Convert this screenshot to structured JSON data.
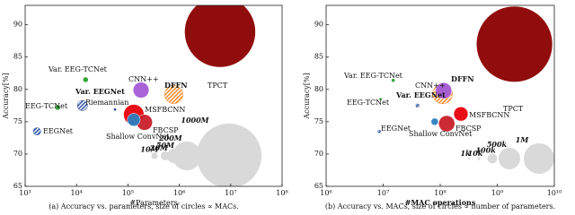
{
  "chart_data": [
    {
      "type": "scatter",
      "x_label": "#Parameters",
      "y_label": "Accuracy[%]",
      "caption": "(a) Accuracy vs. parameters, size of circles ∝ MACs.",
      "xscale": "log",
      "xlim": [
        1000,
        100000000
      ],
      "xticks": [
        {
          "value": 1000,
          "label": "10³"
        },
        {
          "value": 10000,
          "label": "10⁴"
        },
        {
          "value": 100000,
          "label": "10⁵"
        },
        {
          "value": 1000000,
          "label": "10⁶"
        },
        {
          "value": 10000000,
          "label": "10⁷"
        },
        {
          "value": 100000000,
          "label": "10⁸"
        }
      ],
      "ylim": [
        65,
        93
      ],
      "yticks": [
        65,
        70,
        75,
        80,
        85,
        90
      ],
      "points": {
        "labels": [
          "TPCT",
          "DFFN",
          "CNN++",
          "MSFBCNN",
          "FBCSP",
          "Shallow ConvNet",
          "Riemannian",
          "Var. EEGNet",
          "Var. EEG-TCNet",
          "EEG-TCNet",
          "EEGNet"
        ],
        "x": [
          6200000,
          780000,
          180000,
          130000,
          210000,
          130000,
          56000,
          13000,
          15000,
          4300,
          1700
        ],
        "y": [
          88.9,
          79.2,
          79.9,
          76.1,
          74.9,
          75.3,
          76.9,
          77.5,
          81.5,
          77.2,
          73.5
        ],
        "size": [
          1200000000,
          80000000,
          60000000,
          100000000,
          60000000,
          40000000,
          1000000,
          25000000,
          7000000,
          7000000,
          13000000
        ],
        "colors": [
          "#8b0000",
          "#f0892a",
          "#a45ad6",
          "#e8000b",
          "#c9202a",
          "#2a7fbf",
          "#1f3f8f",
          "#3050a0",
          "#2ca02c",
          "#2ca02c",
          "#1f4e9c"
        ],
        "hatched": [
          false,
          true,
          false,
          false,
          false,
          false,
          false,
          true,
          false,
          false,
          true
        ],
        "bold": [
          false,
          true,
          false,
          false,
          false,
          false,
          false,
          true,
          false,
          false,
          false
        ]
      },
      "size_legend": {
        "values": [
          10000000,
          20000000,
          50000000,
          200000000,
          1000000000
        ],
        "labels": [
          "10M",
          "20M",
          "50M",
          "200M",
          "1000M"
        ],
        "color": "#d9d9d9"
      }
    },
    {
      "type": "scatter",
      "x_label": "#MAC operations",
      "y_label": "Accuracy[%]",
      "caption": "(b) Accuracy vs. MACs, size of circles ∝ number of parameters.",
      "xscale": "log",
      "xlim": [
        1000000,
        10000000000
      ],
      "xticks": [
        {
          "value": 1000000,
          "label": "10⁶"
        },
        {
          "value": 10000000,
          "label": "10⁷"
        },
        {
          "value": 100000000,
          "label": "10⁸"
        },
        {
          "value": 1000000000,
          "label": "10⁹"
        },
        {
          "value": 10000000000,
          "label": "10¹⁰"
        }
      ],
      "ylim": [
        65,
        93
      ],
      "yticks": [
        65,
        70,
        75,
        80,
        85,
        90
      ],
      "points": {
        "labels": [
          "TPCT",
          "DFFN",
          "CNN++",
          "MSFBCNN",
          "FBCSP",
          "Shallow ConvNet",
          "Var. EEGNet",
          "Var. EEG-TCNet",
          "EEG-TCNet",
          "EEGNet"
        ],
        "x": [
          2000000000,
          110000000,
          115000000,
          230000000,
          130000000,
          80000000,
          40000000,
          15000000,
          9000000,
          8500000
        ],
        "y": [
          87,
          79.3,
          79.8,
          76.2,
          74.7,
          75,
          77.5,
          81.4,
          78.5,
          73.5
        ],
        "size": [
          6200000,
          420000,
          280000,
          220000,
          280000,
          55000,
          13000,
          15000,
          4300,
          1700
        ],
        "colors": [
          "#8b0000",
          "#f0892a",
          "#a45ad6",
          "#e8000b",
          "#c9202a",
          "#2a7fbf",
          "#3050a0",
          "#2ca02c",
          "#2ca02c",
          "#1f4e9c"
        ],
        "hatched": [
          false,
          true,
          false,
          false,
          false,
          false,
          true,
          false,
          false,
          true
        ],
        "bold": [
          false,
          true,
          false,
          false,
          false,
          false,
          true,
          false,
          false,
          false
        ]
      },
      "size_legend": {
        "values": [
          1000,
          10000,
          100000,
          500000,
          1000000
        ],
        "labels": [
          "1k",
          "10k",
          "100k",
          "500k",
          "1M"
        ],
        "color": "#d9d9d9"
      }
    }
  ]
}
